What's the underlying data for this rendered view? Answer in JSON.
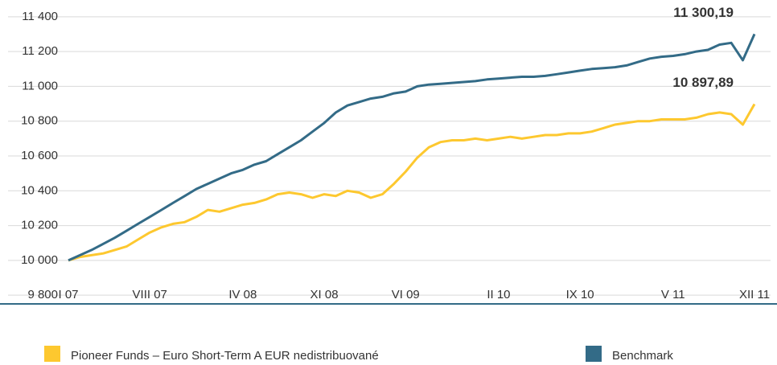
{
  "chart_data": {
    "type": "line",
    "categories": [
      "I 07",
      null,
      null,
      null,
      null,
      null,
      null,
      "VIII 07",
      null,
      null,
      null,
      null,
      null,
      null,
      null,
      "IV 08",
      null,
      null,
      null,
      null,
      null,
      null,
      "XI 08",
      null,
      null,
      null,
      null,
      null,
      null,
      "VI 09",
      null,
      null,
      null,
      null,
      null,
      null,
      null,
      "II 10",
      null,
      null,
      null,
      null,
      null,
      null,
      "IX 10",
      null,
      null,
      null,
      null,
      null,
      null,
      null,
      "V 11",
      null,
      null,
      null,
      null,
      null,
      null,
      "XII 11"
    ],
    "series": [
      {
        "name": "Pioneer Funds – Euro Short-Term  A EUR nedistribuované",
        "color": "#fdc82f",
        "end_label": "10 897,89",
        "values": [
          10000,
          10020,
          10030,
          10040,
          10060,
          10080,
          10120,
          10160,
          10190,
          10210,
          10220,
          10250,
          10290,
          10280,
          10300,
          10320,
          10330,
          10350,
          10380,
          10390,
          10380,
          10360,
          10380,
          10370,
          10400,
          10390,
          10360,
          10380,
          10440,
          10510,
          10590,
          10650,
          10680,
          10690,
          10690,
          10700,
          10690,
          10700,
          10710,
          10700,
          10710,
          10720,
          10720,
          10730,
          10730,
          10740,
          10760,
          10780,
          10790,
          10800,
          10800,
          10810,
          10810,
          10810,
          10820,
          10840,
          10850,
          10840,
          10780,
          10897.89
        ]
      },
      {
        "name": "Benchmark",
        "color": "#336b87",
        "end_label": "11 300,19",
        "values": [
          10000,
          10030,
          10060,
          10095,
          10130,
          10170,
          10210,
          10250,
          10290,
          10330,
          10370,
          10410,
          10440,
          10470,
          10500,
          10520,
          10550,
          10570,
          10610,
          10650,
          10690,
          10740,
          10790,
          10850,
          10890,
          10910,
          10930,
          10940,
          10960,
          10970,
          11000,
          11010,
          11015,
          11020,
          11025,
          11030,
          11040,
          11045,
          11050,
          11055,
          11055,
          11060,
          11070,
          11080,
          11090,
          11100,
          11105,
          11110,
          11120,
          11140,
          11160,
          11170,
          11175,
          11185,
          11200,
          11210,
          11240,
          11250,
          11150,
          11300.19
        ]
      }
    ],
    "ylim": [
      9750,
      11450
    ],
    "yticks": [
      {
        "value": 9800,
        "label": "9 800"
      },
      {
        "value": 10000,
        "label": "10 000"
      },
      {
        "value": 10200,
        "label": "10 200"
      },
      {
        "value": 10400,
        "label": "10 400"
      },
      {
        "value": 10600,
        "label": "10 600"
      },
      {
        "value": 10800,
        "label": "10 800"
      },
      {
        "value": 11000,
        "label": "11 000"
      },
      {
        "value": 11200,
        "label": "11 200"
      },
      {
        "value": 11400,
        "label": "11 400"
      }
    ],
    "grid": true
  }
}
